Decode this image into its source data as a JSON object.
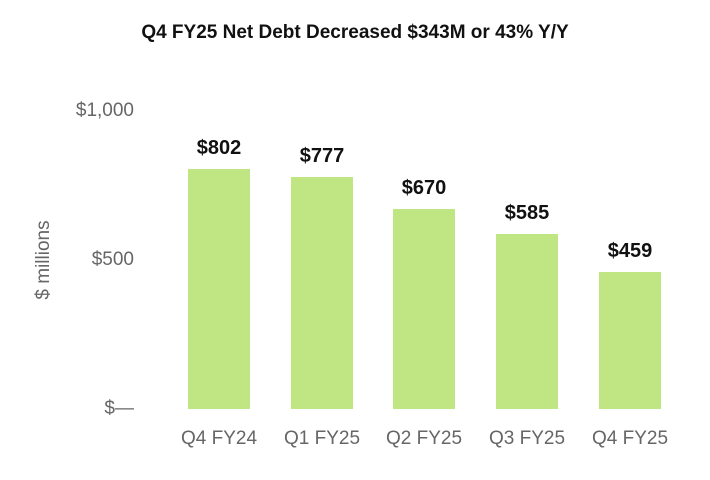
{
  "chart_data": {
    "type": "bar",
    "title": "Q4 FY25 Net Debt Decreased $343M or 43% Y/Y",
    "xlabel": "",
    "ylabel": "$ millions",
    "ylim": [
      0,
      1000
    ],
    "yticks": [
      "$—",
      "$500",
      "$1,000"
    ],
    "grid": false,
    "categories": [
      "Q4 FY24",
      "Q1 FY25",
      "Q2 FY25",
      "Q3 FY25",
      "Q4 FY25"
    ],
    "values": [
      802,
      777,
      670,
      585,
      459
    ],
    "data_labels": [
      "$802",
      "$777",
      "$670",
      "$585",
      "$459"
    ],
    "bar_color": "#c0e684"
  }
}
